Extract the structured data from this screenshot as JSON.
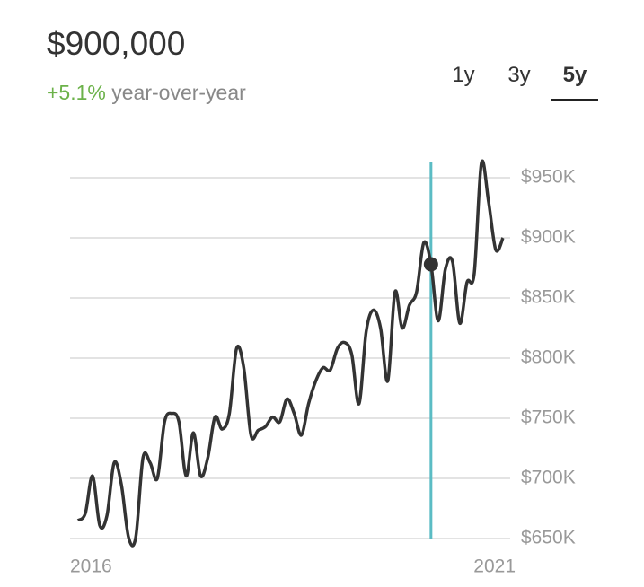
{
  "header": {
    "price": "$900,000",
    "change": "+5.1%",
    "change_label": "year-over-year"
  },
  "tabs": [
    "1y",
    "3y",
    "5y"
  ],
  "active_tab": 2,
  "chart_data": {
    "type": "line",
    "color": "#333333",
    "categories": [
      "2016",
      null,
      null,
      null,
      null,
      null,
      null,
      null,
      null,
      null,
      null,
      null,
      null,
      null,
      null,
      null,
      null,
      null,
      null,
      null,
      null,
      null,
      null,
      null,
      null,
      null,
      null,
      null,
      null,
      null,
      null,
      null,
      null,
      null,
      null,
      null,
      null,
      null,
      null,
      null,
      null,
      null,
      null,
      null,
      null,
      null,
      null,
      null,
      null,
      null,
      null,
      null,
      null,
      null,
      null,
      null,
      null,
      null,
      null,
      "2021"
    ],
    "values": [
      665000,
      671000,
      702000,
      661000,
      669000,
      713000,
      695000,
      651000,
      651000,
      717000,
      713000,
      700000,
      747000,
      754000,
      747000,
      702000,
      738000,
      702000,
      717000,
      751000,
      741000,
      754000,
      808000,
      792000,
      736000,
      740000,
      743000,
      751000,
      747000,
      766000,
      754000,
      736000,
      762000,
      781000,
      792000,
      790000,
      808000,
      813000,
      803000,
      762000,
      822000,
      840000,
      825000,
      781000,
      855000,
      825000,
      844000,
      855000,
      896000,
      878000,
      831000,
      874000,
      880000,
      829000,
      863000,
      870000,
      962000,
      930000,
      890000,
      900000
    ],
    "highlight_index": 49,
    "highlight_color": "#5bbcc4",
    "ylim": [
      650000,
      950000
    ],
    "yticks": [
      {
        "value": 650000,
        "label": "$650K"
      },
      {
        "value": 700000,
        "label": "$700K"
      },
      {
        "value": 750000,
        "label": "$750K"
      },
      {
        "value": 800000,
        "label": "$800K"
      },
      {
        "value": 850000,
        "label": "$850K"
      },
      {
        "value": 900000,
        "label": "$900K"
      },
      {
        "value": 950000,
        "label": "$950K"
      }
    ],
    "grid": true
  }
}
